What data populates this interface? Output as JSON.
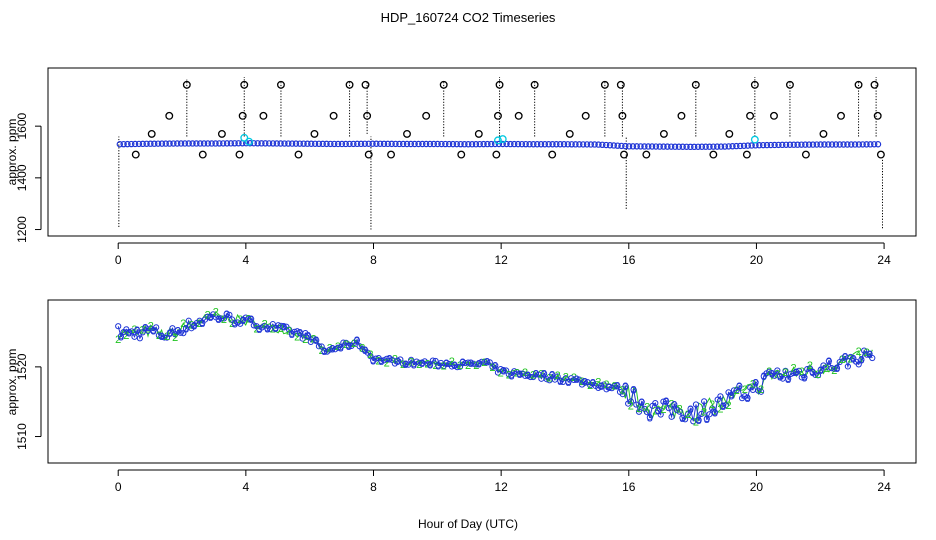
{
  "title": "HDP_160724  CO2 Timeseries",
  "xlabel": "Hour of Day (UTC)",
  "chart_data": [
    {
      "type": "scatter",
      "ylabel": "approx. ppm",
      "xlim": [
        -2.2,
        25.0
      ],
      "ylim": [
        1175,
        1825
      ],
      "xticks": [
        0,
        4,
        8,
        12,
        16,
        20,
        24
      ],
      "xtick_labels": [
        "0",
        "4",
        "8",
        "12",
        "16",
        "20",
        "24"
      ],
      "yticks": [
        1200,
        1400,
        1600
      ],
      "ytick_labels": [
        "1200",
        "1400",
        "1600"
      ],
      "grid": false,
      "legend": "none",
      "colors": {
        "baseline": "#1f35d6",
        "highlight": "#00c8e0",
        "outlier": "#000000",
        "spike": "#000000"
      },
      "baseline": [
        [
          0.05,
          1530
        ],
        [
          1,
          1532
        ],
        [
          2,
          1533
        ],
        [
          3,
          1533
        ],
        [
          4,
          1534
        ],
        [
          5,
          1533
        ],
        [
          6,
          1532
        ],
        [
          7,
          1531
        ],
        [
          8,
          1532
        ],
        [
          9,
          1531
        ],
        [
          10,
          1531
        ],
        [
          11,
          1530
        ],
        [
          12,
          1531
        ],
        [
          13,
          1530
        ],
        [
          14,
          1530
        ],
        [
          15,
          1529
        ],
        [
          16,
          1522
        ],
        [
          17,
          1521
        ],
        [
          18,
          1520
        ],
        [
          19,
          1521
        ],
        [
          20,
          1526
        ],
        [
          21,
          1528
        ],
        [
          22,
          1529
        ],
        [
          23,
          1529
        ],
        [
          23.85,
          1530
        ]
      ],
      "highlights": [
        [
          3.95,
          1555
        ],
        [
          12.05,
          1550
        ],
        [
          19.95,
          1548
        ],
        [
          4.1,
          1540
        ],
        [
          11.9,
          1545
        ]
      ],
      "outliers": [
        [
          0.55,
          1490
        ],
        [
          1.05,
          1570
        ],
        [
          1.6,
          1640
        ],
        [
          2.15,
          1760
        ],
        [
          2.65,
          1490
        ],
        [
          3.25,
          1570
        ],
        [
          3.8,
          1490
        ],
        [
          3.9,
          1640
        ],
        [
          3.95,
          1760
        ],
        [
          4.55,
          1640
        ],
        [
          5.1,
          1760
        ],
        [
          5.65,
          1490
        ],
        [
          6.15,
          1570
        ],
        [
          6.75,
          1640
        ],
        [
          7.25,
          1760
        ],
        [
          7.75,
          1760
        ],
        [
          7.8,
          1640
        ],
        [
          7.85,
          1490
        ],
        [
          8.55,
          1490
        ],
        [
          9.05,
          1570
        ],
        [
          9.65,
          1640
        ],
        [
          10.2,
          1760
        ],
        [
          10.75,
          1490
        ],
        [
          11.3,
          1570
        ],
        [
          11.85,
          1490
        ],
        [
          11.9,
          1640
        ],
        [
          11.95,
          1760
        ],
        [
          12.55,
          1640
        ],
        [
          13.05,
          1760
        ],
        [
          13.6,
          1490
        ],
        [
          14.15,
          1570
        ],
        [
          14.65,
          1640
        ],
        [
          15.25,
          1760
        ],
        [
          15.75,
          1760
        ],
        [
          15.8,
          1640
        ],
        [
          15.85,
          1490
        ],
        [
          16.55,
          1490
        ],
        [
          17.1,
          1570
        ],
        [
          17.65,
          1640
        ],
        [
          18.1,
          1760
        ],
        [
          18.65,
          1490
        ],
        [
          19.15,
          1570
        ],
        [
          19.7,
          1490
        ],
        [
          19.8,
          1640
        ],
        [
          19.95,
          1760
        ],
        [
          20.55,
          1640
        ],
        [
          21.05,
          1760
        ],
        [
          21.55,
          1490
        ],
        [
          22.1,
          1570
        ],
        [
          22.65,
          1640
        ],
        [
          23.2,
          1760
        ],
        [
          23.7,
          1760
        ],
        [
          23.8,
          1640
        ],
        [
          23.9,
          1490
        ]
      ],
      "spikes": [
        [
          0.02,
          1210,
          1560
        ],
        [
          2.15,
          1560,
          1780
        ],
        [
          3.95,
          1560,
          1790
        ],
        [
          5.1,
          1560,
          1770
        ],
        [
          7.25,
          1560,
          1770
        ],
        [
          7.8,
          1570,
          1770
        ],
        [
          7.92,
          1200,
          1560
        ],
        [
          10.2,
          1560,
          1770
        ],
        [
          11.95,
          1560,
          1790
        ],
        [
          13.05,
          1560,
          1770
        ],
        [
          15.25,
          1560,
          1770
        ],
        [
          15.8,
          1560,
          1770
        ],
        [
          15.92,
          1280,
          1560
        ],
        [
          18.1,
          1560,
          1770
        ],
        [
          19.95,
          1560,
          1790
        ],
        [
          21.05,
          1560,
          1770
        ],
        [
          23.2,
          1560,
          1770
        ],
        [
          23.75,
          1560,
          1790
        ],
        [
          23.95,
          1205,
          1470
        ]
      ]
    },
    {
      "type": "line",
      "ylabel": "approx. ppm",
      "xlim": [
        -2.2,
        25.0
      ],
      "ylim": [
        1506.2,
        1529.6
      ],
      "xticks": [
        0,
        4,
        8,
        12,
        16,
        20,
        24
      ],
      "xtick_labels": [
        "0",
        "4",
        "8",
        "12",
        "16",
        "20",
        "24"
      ],
      "yticks": [
        1510,
        1520
      ],
      "ytick_labels": [
        "1510",
        "1520"
      ],
      "grid": false,
      "legend": "none",
      "series": [
        {
          "marker": "2",
          "color": "#22c422"
        },
        {
          "marker": "3",
          "color": "#1f35d6"
        }
      ],
      "anchors": [
        [
          0,
          1525
        ],
        [
          0.5,
          1524.8
        ],
        [
          1,
          1525.2
        ],
        [
          1.5,
          1524.5
        ],
        [
          2,
          1525.5
        ],
        [
          2.5,
          1526.5
        ],
        [
          3,
          1527.3
        ],
        [
          3.5,
          1527
        ],
        [
          4,
          1526.5
        ],
        [
          4.5,
          1526
        ],
        [
          5,
          1525.5
        ],
        [
          5.5,
          1525
        ],
        [
          6,
          1524.2
        ],
        [
          6.5,
          1522.2
        ],
        [
          7,
          1523
        ],
        [
          7.5,
          1523.5
        ],
        [
          8,
          1521.2
        ],
        [
          8.5,
          1520.9
        ],
        [
          9,
          1520.7
        ],
        [
          10,
          1520.5
        ],
        [
          11,
          1520.3
        ],
        [
          11.5,
          1520.6
        ],
        [
          12,
          1519.3
        ],
        [
          13,
          1518.8
        ],
        [
          14,
          1518.3
        ],
        [
          15,
          1517.5
        ],
        [
          15.7,
          1516.8
        ],
        [
          16,
          1516
        ],
        [
          16.5,
          1514.5
        ],
        [
          17,
          1513.5
        ],
        [
          17.5,
          1514
        ],
        [
          18,
          1513.5
        ],
        [
          18.5,
          1514
        ],
        [
          19,
          1515
        ],
        [
          19.5,
          1516
        ],
        [
          20,
          1517
        ],
        [
          20.5,
          1519
        ],
        [
          21,
          1518.8
        ],
        [
          22,
          1519.8
        ],
        [
          23,
          1521
        ],
        [
          23.7,
          1522
        ]
      ],
      "noise": [
        [
          0,
          1.0
        ],
        [
          8,
          0.35
        ],
        [
          15.8,
          0.55
        ],
        [
          16,
          1.6
        ],
        [
          19.5,
          1.4
        ],
        [
          20.5,
          1.1
        ],
        [
          23.7,
          1.0
        ]
      ],
      "step_hours": 0.085
    }
  ]
}
